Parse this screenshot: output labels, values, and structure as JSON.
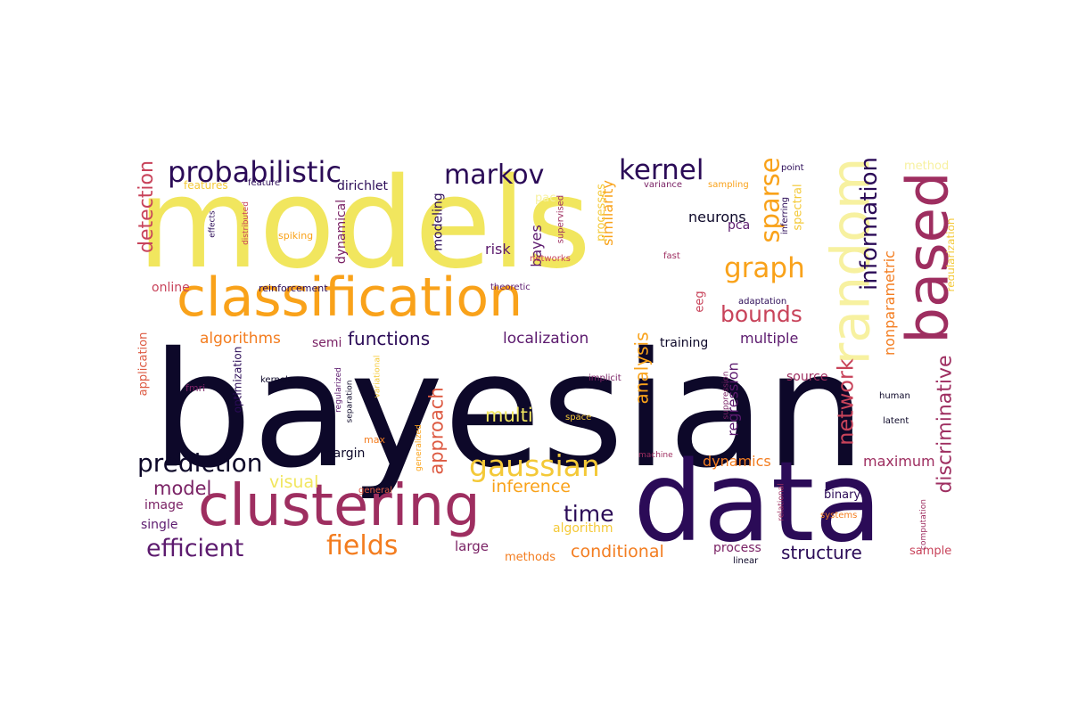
{
  "colors": {
    "black": "#0d0829",
    "indigo": "#2b0b57",
    "purple": "#5c1a6e",
    "plum": "#7a2265",
    "magenta": "#9e2e60",
    "rose": "#c8435a",
    "red": "#dd5a42",
    "orange": "#f37d20",
    "amber": "#f9a21a",
    "gold": "#f4c938",
    "yellow": "#f1e65e",
    "cream": "#f7f1a0"
  },
  "words": [
    {
      "text": "models",
      "color": "yellow"
    },
    {
      "text": "bayesian",
      "color": "black"
    },
    {
      "text": "data",
      "color": "indigo"
    },
    {
      "text": "classification",
      "color": "amber"
    },
    {
      "text": "clustering",
      "color": "magenta"
    },
    {
      "text": "based",
      "color": "magenta"
    },
    {
      "text": "random",
      "color": "cream"
    },
    {
      "text": "probabilistic",
      "color": "indigo"
    },
    {
      "text": "markov",
      "color": "indigo"
    },
    {
      "text": "kernel",
      "color": "indigo"
    },
    {
      "text": "sparse",
      "color": "amber"
    },
    {
      "text": "information",
      "color": "indigo"
    },
    {
      "text": "graph",
      "color": "amber"
    },
    {
      "text": "bounds",
      "color": "rose"
    },
    {
      "text": "prediction",
      "color": "black"
    },
    {
      "text": "gaussian",
      "color": "gold"
    },
    {
      "text": "fields",
      "color": "orange"
    },
    {
      "text": "efficient",
      "color": "purple"
    },
    {
      "text": "model",
      "color": "plum"
    },
    {
      "text": "time",
      "color": "indigo"
    },
    {
      "text": "network",
      "color": "rose"
    },
    {
      "text": "discriminative",
      "color": "magenta"
    },
    {
      "text": "analysis",
      "color": "amber"
    },
    {
      "text": "approach",
      "color": "red"
    },
    {
      "text": "detection",
      "color": "rose"
    },
    {
      "text": "functions",
      "color": "indigo"
    },
    {
      "text": "structure",
      "color": "indigo"
    },
    {
      "text": "conditional",
      "color": "orange"
    },
    {
      "text": "inference",
      "color": "amber"
    },
    {
      "text": "multi",
      "color": "yellow"
    },
    {
      "text": "visual",
      "color": "yellow"
    },
    {
      "text": "localization",
      "color": "purple"
    },
    {
      "text": "algorithms",
      "color": "orange"
    },
    {
      "text": "maximum",
      "color": "magenta"
    },
    {
      "text": "dynamics",
      "color": "orange"
    },
    {
      "text": "regression",
      "color": "purple"
    },
    {
      "text": "multiple",
      "color": "purple"
    },
    {
      "text": "nonparametric",
      "color": "orange"
    },
    {
      "text": "similarity",
      "color": "amber"
    },
    {
      "text": "neurons",
      "color": "black"
    },
    {
      "text": "risk",
      "color": "purple"
    },
    {
      "text": "bayes",
      "color": "purple"
    },
    {
      "text": "modeling",
      "color": "indigo"
    },
    {
      "text": "dynamical",
      "color": "plum"
    },
    {
      "text": "dirichlet",
      "color": "indigo"
    },
    {
      "text": "margin",
      "color": "black"
    },
    {
      "text": "image",
      "color": "plum"
    },
    {
      "text": "single",
      "color": "purple"
    },
    {
      "text": "large",
      "color": "plum"
    },
    {
      "text": "algorithm",
      "color": "gold"
    },
    {
      "text": "methods",
      "color": "orange"
    },
    {
      "text": "process",
      "color": "plum"
    },
    {
      "text": "training",
      "color": "black"
    },
    {
      "text": "source",
      "color": "magenta"
    },
    {
      "text": "binary",
      "color": "indigo"
    },
    {
      "text": "sample",
      "color": "rose"
    },
    {
      "text": "pca",
      "color": "purple"
    },
    {
      "text": "online",
      "color": "rose"
    },
    {
      "text": "semi",
      "color": "plum"
    },
    {
      "text": "processes",
      "color": "gold"
    },
    {
      "text": "spectral",
      "color": "gold"
    },
    {
      "text": "eeg",
      "color": "rose"
    },
    {
      "text": "application",
      "color": "red"
    },
    {
      "text": "optimization",
      "color": "indigo"
    },
    {
      "text": "regularization",
      "color": "gold"
    },
    {
      "text": "reinforcement",
      "color": "indigo"
    },
    {
      "text": "features",
      "color": "gold"
    },
    {
      "text": "feature",
      "color": "indigo"
    },
    {
      "text": "method",
      "color": "cream"
    },
    {
      "text": "point",
      "color": "indigo"
    },
    {
      "text": "variance",
      "color": "plum"
    },
    {
      "text": "sampling",
      "color": "amber"
    },
    {
      "text": "inferring",
      "color": "indigo"
    },
    {
      "text": "pac",
      "color": "cream"
    },
    {
      "text": "supervised",
      "color": "magenta"
    },
    {
      "text": "spiking",
      "color": "amber"
    },
    {
      "text": "networks",
      "color": "rose"
    },
    {
      "text": "fast",
      "color": "magenta"
    },
    {
      "text": "theoretic",
      "color": "purple"
    },
    {
      "text": "adaptation",
      "color": "indigo"
    },
    {
      "text": "effects",
      "color": "indigo"
    },
    {
      "text": "distributed",
      "color": "rose"
    },
    {
      "text": "kernels",
      "color": "black"
    },
    {
      "text": "fmri",
      "color": "plum"
    },
    {
      "text": "regularized",
      "color": "purple"
    },
    {
      "text": "separation",
      "color": "black"
    },
    {
      "text": "variational",
      "color": "gold"
    },
    {
      "text": "implicit",
      "color": "plum"
    },
    {
      "text": "space",
      "color": "gold"
    },
    {
      "text": "suppression",
      "color": "plum"
    },
    {
      "text": "human",
      "color": "black"
    },
    {
      "text": "latent",
      "color": "black"
    },
    {
      "text": "max",
      "color": "orange"
    },
    {
      "text": "generalized",
      "color": "amber"
    },
    {
      "text": "general",
      "color": "red"
    },
    {
      "text": "machine",
      "color": "magenta"
    },
    {
      "text": "relational",
      "color": "magenta"
    },
    {
      "text": "computation",
      "color": "magenta"
    },
    {
      "text": "systems",
      "color": "orange"
    },
    {
      "text": "linear",
      "color": "black"
    }
  ]
}
